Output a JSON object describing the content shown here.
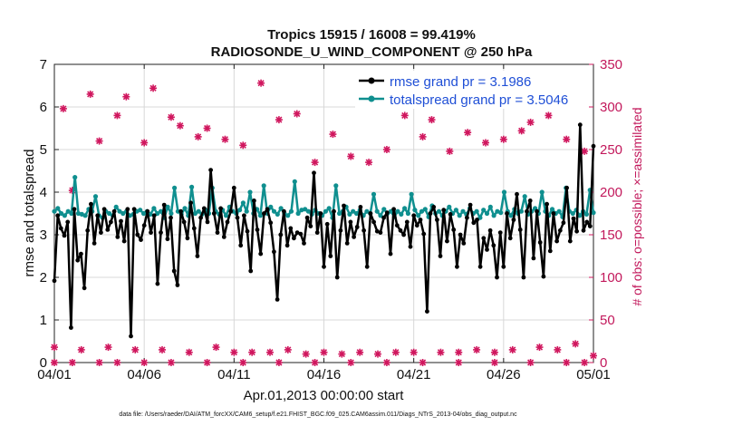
{
  "chart_data": {
    "type": "line",
    "title": "Tropics 15915 / 16008 = 99.419%",
    "subtitle": "RADIOSONDE_U_WIND_COMPONENT @ 250 hPa",
    "xlabel": "Apr.01,2013 00:00:00 start",
    "ylabel": "rmse and totalspread",
    "ylabel_right": "# of obs: o=possible; ×=assimilated",
    "xlim": [
      0,
      30
    ],
    "ylim": [
      0,
      7
    ],
    "ylim_right": [
      0,
      350
    ],
    "x_ticks": [
      0,
      5,
      10,
      15,
      20,
      25,
      30
    ],
    "x_tick_labels": [
      "04/01",
      "04/06",
      "04/11",
      "04/16",
      "04/21",
      "04/26",
      "05/01"
    ],
    "y_ticks": [
      "0",
      "1",
      "2",
      "3",
      "4",
      "5",
      "6",
      "7"
    ],
    "y_ticks_right": [
      "0",
      "50",
      "100",
      "150",
      "200",
      "250",
      "300",
      "350"
    ],
    "legend_placement": "top-right",
    "footnote": "data file: /Users/raeder/DAI/ATM_forcXX/CAM6_setup/f.e21.FHIST_BGC.f09_025.CAM6assim.011/Diags_NTrS_2013-04/obs_diag_output.nc",
    "colors": {
      "rmse": "#000000",
      "spread": "#0f8f8f",
      "obs": "#d0175e",
      "legend_text": "#1f4fd6"
    },
    "series": [
      {
        "name": "rmse grand pr = 3.1986",
        "values": [
          1.92,
          3.45,
          3.15,
          2.98,
          3.3,
          0.82,
          3.6,
          2.4,
          2.55,
          1.75,
          3.1,
          3.72,
          2.8,
          3.45,
          3.05,
          3.6,
          3.12,
          3.3,
          3.55,
          2.95,
          3.32,
          2.85,
          3.6,
          0.62,
          3.6,
          3.0,
          2.88,
          3.22,
          3.55,
          3.05,
          3.45,
          1.85,
          3.05,
          3.7,
          2.9,
          3.4,
          2.15,
          1.82,
          3.55,
          3.3,
          2.92,
          3.75,
          3.15,
          2.5,
          3.4,
          3.62,
          3.3,
          4.52,
          3.5,
          3.05,
          3.62,
          2.95,
          3.3,
          3.55,
          4.1,
          3.4,
          2.75,
          3.45,
          3.08,
          2.15,
          3.8,
          3.12,
          2.55,
          3.5,
          3.6,
          3.28,
          2.6,
          1.48,
          3.0,
          3.55,
          2.75,
          3.15,
          2.92,
          3.05,
          3.02,
          2.8,
          3.4,
          3.2,
          4.45,
          3.05,
          3.5,
          2.25,
          3.25,
          2.5,
          3.55,
          2.0,
          3.1,
          3.68,
          2.8,
          3.3,
          2.95,
          3.18,
          3.65,
          3.1,
          2.25,
          3.5,
          3.3,
          3.08,
          3.05,
          3.4,
          3.52,
          2.55,
          3.6,
          3.22,
          3.1,
          3.0,
          3.3,
          2.72,
          3.45,
          3.22,
          3.35,
          3.02,
          1.2,
          3.5,
          3.65,
          3.35,
          2.5,
          3.58,
          2.85,
          3.48,
          3.12,
          2.25,
          3.0,
          2.8,
          3.4,
          3.7,
          3.28,
          3.35,
          2.25,
          2.92,
          2.65,
          3.1,
          2.75,
          2.0,
          3.05,
          2.25,
          3.5,
          2.92,
          3.35,
          3.95,
          3.12,
          2.0,
          3.55,
          3.8,
          2.45,
          3.55,
          2.82,
          2.02,
          3.72,
          2.62,
          3.5,
          2.85,
          3.1,
          3.28,
          4.1,
          2.85,
          3.38,
          3.08,
          5.58,
          3.1,
          3.3,
          3.2,
          5.08
        ]
      },
      {
        "name": "totalspread grand pr = 3.5046",
        "values": [
          3.55,
          3.62,
          3.5,
          3.45,
          3.55,
          3.5,
          4.35,
          3.5,
          3.48,
          3.45,
          3.6,
          3.55,
          3.9,
          3.45,
          3.4,
          3.55,
          3.5,
          3.45,
          3.65,
          3.55,
          3.5,
          3.55,
          3.45,
          3.48,
          3.55,
          3.58,
          3.5,
          3.55,
          3.48,
          3.62,
          3.5,
          3.55,
          3.4,
          3.65,
          3.5,
          4.1,
          3.55,
          3.48,
          3.62,
          3.45,
          4.12,
          3.5,
          3.55,
          3.48,
          3.58,
          3.5,
          4.1,
          3.55,
          3.48,
          3.58,
          3.45,
          3.65,
          3.55,
          3.5,
          3.58,
          3.75,
          3.55,
          4.0,
          3.5,
          3.6,
          3.45,
          4.15,
          3.5,
          3.65,
          3.55,
          3.48,
          3.62,
          3.5,
          3.45,
          3.55,
          4.25,
          3.5,
          3.58,
          3.6,
          3.55,
          3.48,
          3.58,
          3.5,
          3.45,
          3.55,
          3.62,
          3.4,
          4.15,
          3.5,
          3.55,
          3.65,
          3.48,
          3.55,
          3.5,
          3.58,
          3.45,
          3.55,
          3.5,
          3.95,
          3.55,
          3.45,
          3.6,
          3.5,
          3.55,
          3.42,
          3.55,
          3.48,
          3.62,
          3.5,
          3.95,
          3.58,
          3.45,
          3.55,
          3.6,
          3.42,
          3.68,
          3.5,
          3.55,
          3.45,
          3.55,
          3.65,
          3.5,
          3.58,
          3.45,
          3.55,
          3.48,
          3.62,
          3.5,
          3.55,
          3.4,
          3.58,
          3.5,
          3.65,
          3.45,
          3.55,
          3.52,
          4.0,
          3.55,
          3.45,
          3.6,
          3.5,
          3.55,
          3.9,
          3.48,
          3.55,
          3.62,
          3.5,
          4.0,
          3.55,
          3.45,
          3.6,
          3.5,
          3.55,
          3.42,
          4.1,
          3.55,
          3.5,
          3.58,
          3.45,
          3.55,
          3.48,
          4.05,
          3.52
        ]
      }
    ],
    "obs_possible": [
      {
        "x": 0.0,
        "y": 18
      },
      {
        "x": 0.0,
        "y": 0
      },
      {
        "x": 0.5,
        "y": 298
      },
      {
        "x": 1.0,
        "y": 0
      },
      {
        "x": 1.0,
        "y": 202
      },
      {
        "x": 1.5,
        "y": 15
      },
      {
        "x": 2.0,
        "y": 315
      },
      {
        "x": 2.5,
        "y": 260
      },
      {
        "x": 2.5,
        "y": 0
      },
      {
        "x": 3.0,
        "y": 18
      },
      {
        "x": 3.5,
        "y": 290
      },
      {
        "x": 3.5,
        "y": 0
      },
      {
        "x": 4.0,
        "y": 312
      },
      {
        "x": 4.5,
        "y": 15
      },
      {
        "x": 5.0,
        "y": 258
      },
      {
        "x": 5.0,
        "y": 0
      },
      {
        "x": 5.5,
        "y": 322
      },
      {
        "x": 6.0,
        "y": 15
      },
      {
        "x": 6.5,
        "y": 288
      },
      {
        "x": 6.5,
        "y": 0
      },
      {
        "x": 7.0,
        "y": 278
      },
      {
        "x": 7.5,
        "y": 12
      },
      {
        "x": 8.0,
        "y": 265
      },
      {
        "x": 8.5,
        "y": 275
      },
      {
        "x": 8.5,
        "y": 0
      },
      {
        "x": 9.0,
        "y": 18
      },
      {
        "x": 9.5,
        "y": 262
      },
      {
        "x": 10.0,
        "y": 12
      },
      {
        "x": 10.5,
        "y": 255
      },
      {
        "x": 10.5,
        "y": 0
      },
      {
        "x": 11.0,
        "y": 12
      },
      {
        "x": 11.5,
        "y": 328
      },
      {
        "x": 12.0,
        "y": 12
      },
      {
        "x": 12.5,
        "y": 285
      },
      {
        "x": 12.5,
        "y": 0
      },
      {
        "x": 13.0,
        "y": 15
      },
      {
        "x": 13.5,
        "y": 292
      },
      {
        "x": 14.0,
        "y": 10
      },
      {
        "x": 14.5,
        "y": 235
      },
      {
        "x": 14.5,
        "y": 0
      },
      {
        "x": 15.0,
        "y": 12
      },
      {
        "x": 15.5,
        "y": 268
      },
      {
        "x": 16.0,
        "y": 10
      },
      {
        "x": 16.5,
        "y": 242
      },
      {
        "x": 16.5,
        "y": 0
      },
      {
        "x": 17.0,
        "y": 12
      },
      {
        "x": 17.5,
        "y": 235
      },
      {
        "x": 18.0,
        "y": 10
      },
      {
        "x": 18.5,
        "y": 250
      },
      {
        "x": 18.5,
        "y": 0
      },
      {
        "x": 19.0,
        "y": 12
      },
      {
        "x": 19.5,
        "y": 290
      },
      {
        "x": 20.0,
        "y": 12
      },
      {
        "x": 20.5,
        "y": 265
      },
      {
        "x": 20.5,
        "y": 0
      },
      {
        "x": 21.0,
        "y": 285
      },
      {
        "x": 21.5,
        "y": 12
      },
      {
        "x": 22.0,
        "y": 248
      },
      {
        "x": 22.5,
        "y": 12
      },
      {
        "x": 22.5,
        "y": 0
      },
      {
        "x": 23.0,
        "y": 270
      },
      {
        "x": 23.5,
        "y": 15
      },
      {
        "x": 24.0,
        "y": 258
      },
      {
        "x": 24.5,
        "y": 12
      },
      {
        "x": 24.5,
        "y": 0
      },
      {
        "x": 25.0,
        "y": 262
      },
      {
        "x": 25.5,
        "y": 15
      },
      {
        "x": 26.0,
        "y": 272
      },
      {
        "x": 26.5,
        "y": 282
      },
      {
        "x": 26.5,
        "y": 0
      },
      {
        "x": 27.0,
        "y": 18
      },
      {
        "x": 27.5,
        "y": 290
      },
      {
        "x": 28.0,
        "y": 15
      },
      {
        "x": 28.5,
        "y": 262
      },
      {
        "x": 28.5,
        "y": 0
      },
      {
        "x": 29.0,
        "y": 22
      },
      {
        "x": 29.5,
        "y": 248
      },
      {
        "x": 29.5,
        "y": 0
      },
      {
        "x": 30.0,
        "y": 8
      }
    ]
  }
}
